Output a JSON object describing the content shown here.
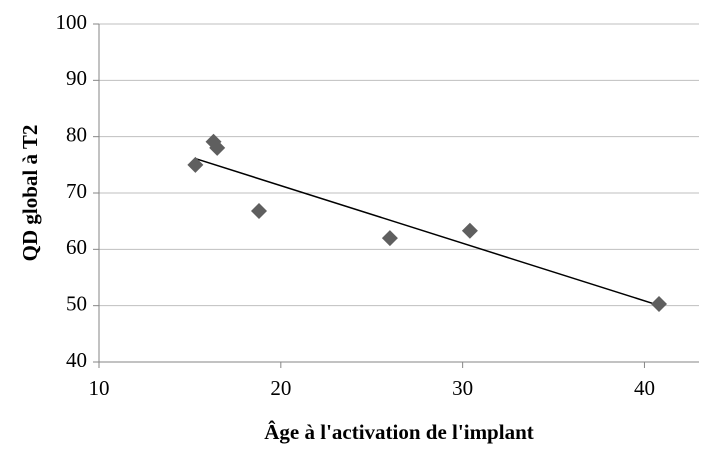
{
  "chart_data": {
    "type": "scatter",
    "x_label": "Âge à l'activation de l'implant",
    "y_label": "QD global à T2",
    "series": [
      {
        "x": [
          15.3,
          16.3,
          16.5,
          18.8,
          26.0,
          30.4,
          40.8
        ],
        "values": [
          75,
          79.1,
          78,
          66.8,
          62,
          63.3,
          50.3
        ],
        "color": "#5f5f5f"
      }
    ],
    "trendline": "linear",
    "xlim": [
      10,
      43
    ],
    "xticks": [
      10,
      20,
      30,
      40
    ],
    "ylim": [
      40,
      100
    ],
    "yticks": [
      40,
      50,
      60,
      70,
      80,
      90,
      100
    ],
    "grid": true
  }
}
